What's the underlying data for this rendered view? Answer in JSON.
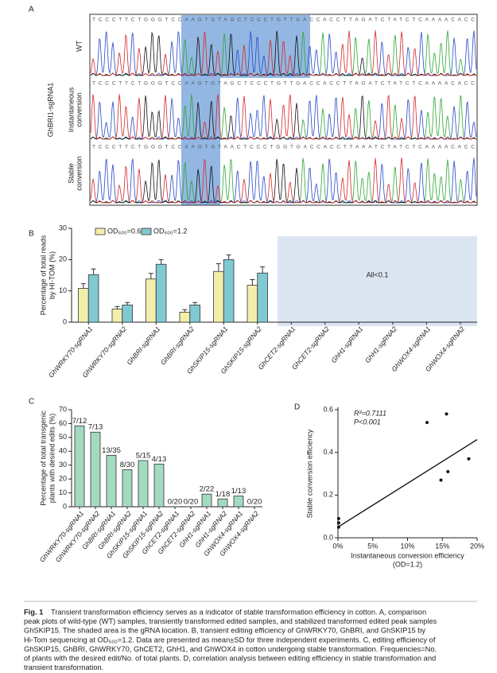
{
  "panel_labels": [
    "A",
    "B",
    "C",
    "D"
  ],
  "figure_a": {
    "group_label": "GhBRI1-sgRNA1",
    "rows": [
      {
        "label_lines": [
          "WT"
        ],
        "sequence": "TCCCTTCTGGGTCCAAGTGTAGCTCCCTGTTGACCACCTTAGATCTATCTCAAAACACC"
      },
      {
        "label_lines": [
          "Instantaneous",
          "conversion"
        ],
        "sequence": "TCCCTTCTGGGTCCAAGTGTAGCTCCCTGTTGACCACCTTAGATCTATCTCAAAACACC"
      },
      {
        "label_lines": [
          "Stable",
          "conversion"
        ],
        "sequence": "TCCCTTCTGGGTCCAAGTGTAACTCCCTGGTGACCACCTTAAATCTATCTCAAAACACC"
      }
    ]
  },
  "chart_data": [
    {
      "type": "bar",
      "ylabel_lines": [
        "Percentage of total reads",
        "by HI-TOM (%)"
      ],
      "categories": [
        "GhWRKY70-sgRNA1",
        "GhWRKY70-sgRNA2",
        "GhBRI-sgRNA1",
        "GhBRI-sgRNA2",
        "GhSKIP15-sgRNA1",
        "GhSKIP15-sgRNA2",
        "GhCET2-sgRNA1",
        "GhCET2-sgRNA2",
        "GhH1-sgRNA1",
        "GhH1-sgRNA2",
        "GhWOX4-sgRNA1",
        "GhWOX4-sgRNA2"
      ],
      "series": [
        {
          "name": "OD₆₀₀=0.6",
          "color": "#f3efaa",
          "values": [
            10.8,
            4.2,
            13.8,
            3.2,
            16.2,
            11.8,
            null,
            null,
            null,
            null,
            null,
            null
          ],
          "errors": [
            1.5,
            0.8,
            1.8,
            0.8,
            2.5,
            1.8,
            null,
            null,
            null,
            null,
            null,
            null
          ]
        },
        {
          "name": "OD₆₀₀=1.2",
          "color": "#80c9d3",
          "values": [
            15.2,
            5.5,
            18.5,
            5.5,
            20,
            15.7,
            null,
            null,
            null,
            null,
            null,
            null
          ],
          "errors": [
            1.8,
            0.8,
            1.5,
            0.8,
            1.5,
            2.0,
            null,
            null,
            null,
            null,
            null,
            null
          ]
        }
      ],
      "annotation": "All<0.1",
      "ylim": [
        0,
        30
      ],
      "yticks": [
        0,
        10,
        20,
        30
      ]
    },
    {
      "type": "bar",
      "ylabel_lines": [
        "Percentage of total transgenic",
        "plants with desired edits (%)"
      ],
      "categories": [
        "GhWRKY70-sgRNA1",
        "GhWRKY70-sgRNA2",
        "GhBRI-sgRNA1",
        "GhBRI-sgRNA2",
        "GhSKIP15-sgRNA1",
        "GhSKIP15-sgRNA2",
        "GhCET2-sgRNA1",
        "GhCET2-sgRNA2",
        "GhH1-sgRNA1",
        "GhH1-sgRNA2",
        "GhWOX4-sgRNA1",
        "GhWOX4-sgRNA2"
      ],
      "color": "#a3dac0",
      "values": [
        58.3,
        53.8,
        37.1,
        26.7,
        33.3,
        30.8,
        0,
        0,
        9.1,
        5.6,
        7.7,
        0
      ],
      "value_labels": [
        "7/12",
        "7/13",
        "13/35",
        "8/30",
        "5/15",
        "4/13",
        "0/20",
        "0/20",
        "2/22",
        "1/18",
        "1/13",
        "0/20"
      ],
      "ylim": [
        0,
        70
      ],
      "yticks": [
        0,
        10,
        20,
        30,
        40,
        50,
        60,
        70
      ]
    },
    {
      "type": "scatter",
      "xlabel_lines": [
        "Instantaneous conversion efficiency",
        "(OD=1.2)"
      ],
      "ylabel": "Stable conversion efficiency",
      "x": [
        0.1,
        0.1,
        0.1,
        12.8,
        15.6,
        14.8,
        15.8,
        18.8
      ],
      "values": [
        0.09,
        0.07,
        0.05,
        0.54,
        0.58,
        0.27,
        0.31,
        0.37
      ],
      "fit": {
        "x": [
          0,
          20
        ],
        "y": [
          0.05,
          0.46
        ]
      },
      "annotations": [
        "R²=0.7111",
        "P<0.001"
      ],
      "xlim": [
        0,
        20
      ],
      "xticks": [
        {
          "value": 0,
          "label": "0%"
        },
        {
          "value": 5,
          "label": "5%"
        },
        {
          "value": 10,
          "label": "10%"
        },
        {
          "value": 15,
          "label": "15%"
        },
        {
          "value": 20,
          "label": "20%"
        }
      ],
      "ylim": [
        0,
        0.6
      ],
      "yticks": [
        {
          "value": 0,
          "label": "0.0"
        },
        0.2,
        0.4,
        0.6
      ]
    }
  ],
  "caption": {
    "prefix": "Fig. 1",
    "lines": [
      "Transient transformation efficiency serves as a indicator of stable transformation efficiency in cotton.  A, comparison",
      "peak plots of wild-type (WT) samples, transiently transformed edited samples, and stabilized transformed edited peak samples",
      "GhSKIP15.  The shaded area is the gRNA location. B, transient editing efficiency of GhWRKY70, GhBRI, and GhSKIP15 by",
      "Hi-Tom sequencing at OD₆₀₀=1.2.  Data are presented as mean±SD for three independent experiments. C, editing efficiency of",
      "GhSKIP15, GhBRI, GhWRKY70, GhCET2, GhH1, and GhWOX4 in cotton undergoing stable transformation.  Frequencies=No.",
      "of plants with the desired edit/No. of total plants.  D, correlation analysis between editing efficiency in stable transformation and",
      "transient transformation."
    ]
  }
}
